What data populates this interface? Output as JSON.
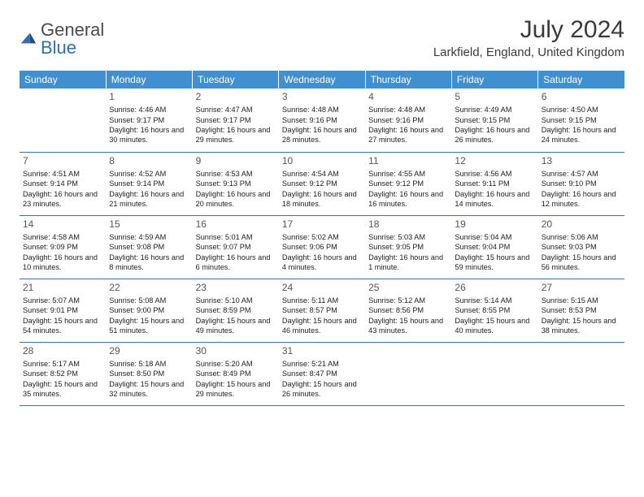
{
  "brand": {
    "part1": "General",
    "part2": "Blue"
  },
  "title": "July 2024",
  "location": "Larkfield, England, United Kingdom",
  "colors": {
    "header_bg": "#3f8fd1",
    "header_text": "#ffffff",
    "rule": "#3f6fa0",
    "text": "#222222",
    "logo_blue": "#2f6fb0"
  },
  "columns": [
    "Sunday",
    "Monday",
    "Tuesday",
    "Wednesday",
    "Thursday",
    "Friday",
    "Saturday"
  ],
  "weeks": [
    [
      null,
      {
        "n": "1",
        "sr": "4:46 AM",
        "ss": "9:17 PM",
        "dl": "16 hours and 30 minutes."
      },
      {
        "n": "2",
        "sr": "4:47 AM",
        "ss": "9:17 PM",
        "dl": "16 hours and 29 minutes."
      },
      {
        "n": "3",
        "sr": "4:48 AM",
        "ss": "9:16 PM",
        "dl": "16 hours and 28 minutes."
      },
      {
        "n": "4",
        "sr": "4:48 AM",
        "ss": "9:16 PM",
        "dl": "16 hours and 27 minutes."
      },
      {
        "n": "5",
        "sr": "4:49 AM",
        "ss": "9:15 PM",
        "dl": "16 hours and 26 minutes."
      },
      {
        "n": "6",
        "sr": "4:50 AM",
        "ss": "9:15 PM",
        "dl": "16 hours and 24 minutes."
      }
    ],
    [
      {
        "n": "7",
        "sr": "4:51 AM",
        "ss": "9:14 PM",
        "dl": "16 hours and 23 minutes."
      },
      {
        "n": "8",
        "sr": "4:52 AM",
        "ss": "9:14 PM",
        "dl": "16 hours and 21 minutes."
      },
      {
        "n": "9",
        "sr": "4:53 AM",
        "ss": "9:13 PM",
        "dl": "16 hours and 20 minutes."
      },
      {
        "n": "10",
        "sr": "4:54 AM",
        "ss": "9:12 PM",
        "dl": "16 hours and 18 minutes."
      },
      {
        "n": "11",
        "sr": "4:55 AM",
        "ss": "9:12 PM",
        "dl": "16 hours and 16 minutes."
      },
      {
        "n": "12",
        "sr": "4:56 AM",
        "ss": "9:11 PM",
        "dl": "16 hours and 14 minutes."
      },
      {
        "n": "13",
        "sr": "4:57 AM",
        "ss": "9:10 PM",
        "dl": "16 hours and 12 minutes."
      }
    ],
    [
      {
        "n": "14",
        "sr": "4:58 AM",
        "ss": "9:09 PM",
        "dl": "16 hours and 10 minutes."
      },
      {
        "n": "15",
        "sr": "4:59 AM",
        "ss": "9:08 PM",
        "dl": "16 hours and 8 minutes."
      },
      {
        "n": "16",
        "sr": "5:01 AM",
        "ss": "9:07 PM",
        "dl": "16 hours and 6 minutes."
      },
      {
        "n": "17",
        "sr": "5:02 AM",
        "ss": "9:06 PM",
        "dl": "16 hours and 4 minutes."
      },
      {
        "n": "18",
        "sr": "5:03 AM",
        "ss": "9:05 PM",
        "dl": "16 hours and 1 minute."
      },
      {
        "n": "19",
        "sr": "5:04 AM",
        "ss": "9:04 PM",
        "dl": "15 hours and 59 minutes."
      },
      {
        "n": "20",
        "sr": "5:06 AM",
        "ss": "9:03 PM",
        "dl": "15 hours and 56 minutes."
      }
    ],
    [
      {
        "n": "21",
        "sr": "5:07 AM",
        "ss": "9:01 PM",
        "dl": "15 hours and 54 minutes."
      },
      {
        "n": "22",
        "sr": "5:08 AM",
        "ss": "9:00 PM",
        "dl": "15 hours and 51 minutes."
      },
      {
        "n": "23",
        "sr": "5:10 AM",
        "ss": "8:59 PM",
        "dl": "15 hours and 49 minutes."
      },
      {
        "n": "24",
        "sr": "5:11 AM",
        "ss": "8:57 PM",
        "dl": "15 hours and 46 minutes."
      },
      {
        "n": "25",
        "sr": "5:12 AM",
        "ss": "8:56 PM",
        "dl": "15 hours and 43 minutes."
      },
      {
        "n": "26",
        "sr": "5:14 AM",
        "ss": "8:55 PM",
        "dl": "15 hours and 40 minutes."
      },
      {
        "n": "27",
        "sr": "5:15 AM",
        "ss": "8:53 PM",
        "dl": "15 hours and 38 minutes."
      }
    ],
    [
      {
        "n": "28",
        "sr": "5:17 AM",
        "ss": "8:52 PM",
        "dl": "15 hours and 35 minutes."
      },
      {
        "n": "29",
        "sr": "5:18 AM",
        "ss": "8:50 PM",
        "dl": "15 hours and 32 minutes."
      },
      {
        "n": "30",
        "sr": "5:20 AM",
        "ss": "8:49 PM",
        "dl": "15 hours and 29 minutes."
      },
      {
        "n": "31",
        "sr": "5:21 AM",
        "ss": "8:47 PM",
        "dl": "15 hours and 26 minutes."
      },
      null,
      null,
      null
    ]
  ]
}
